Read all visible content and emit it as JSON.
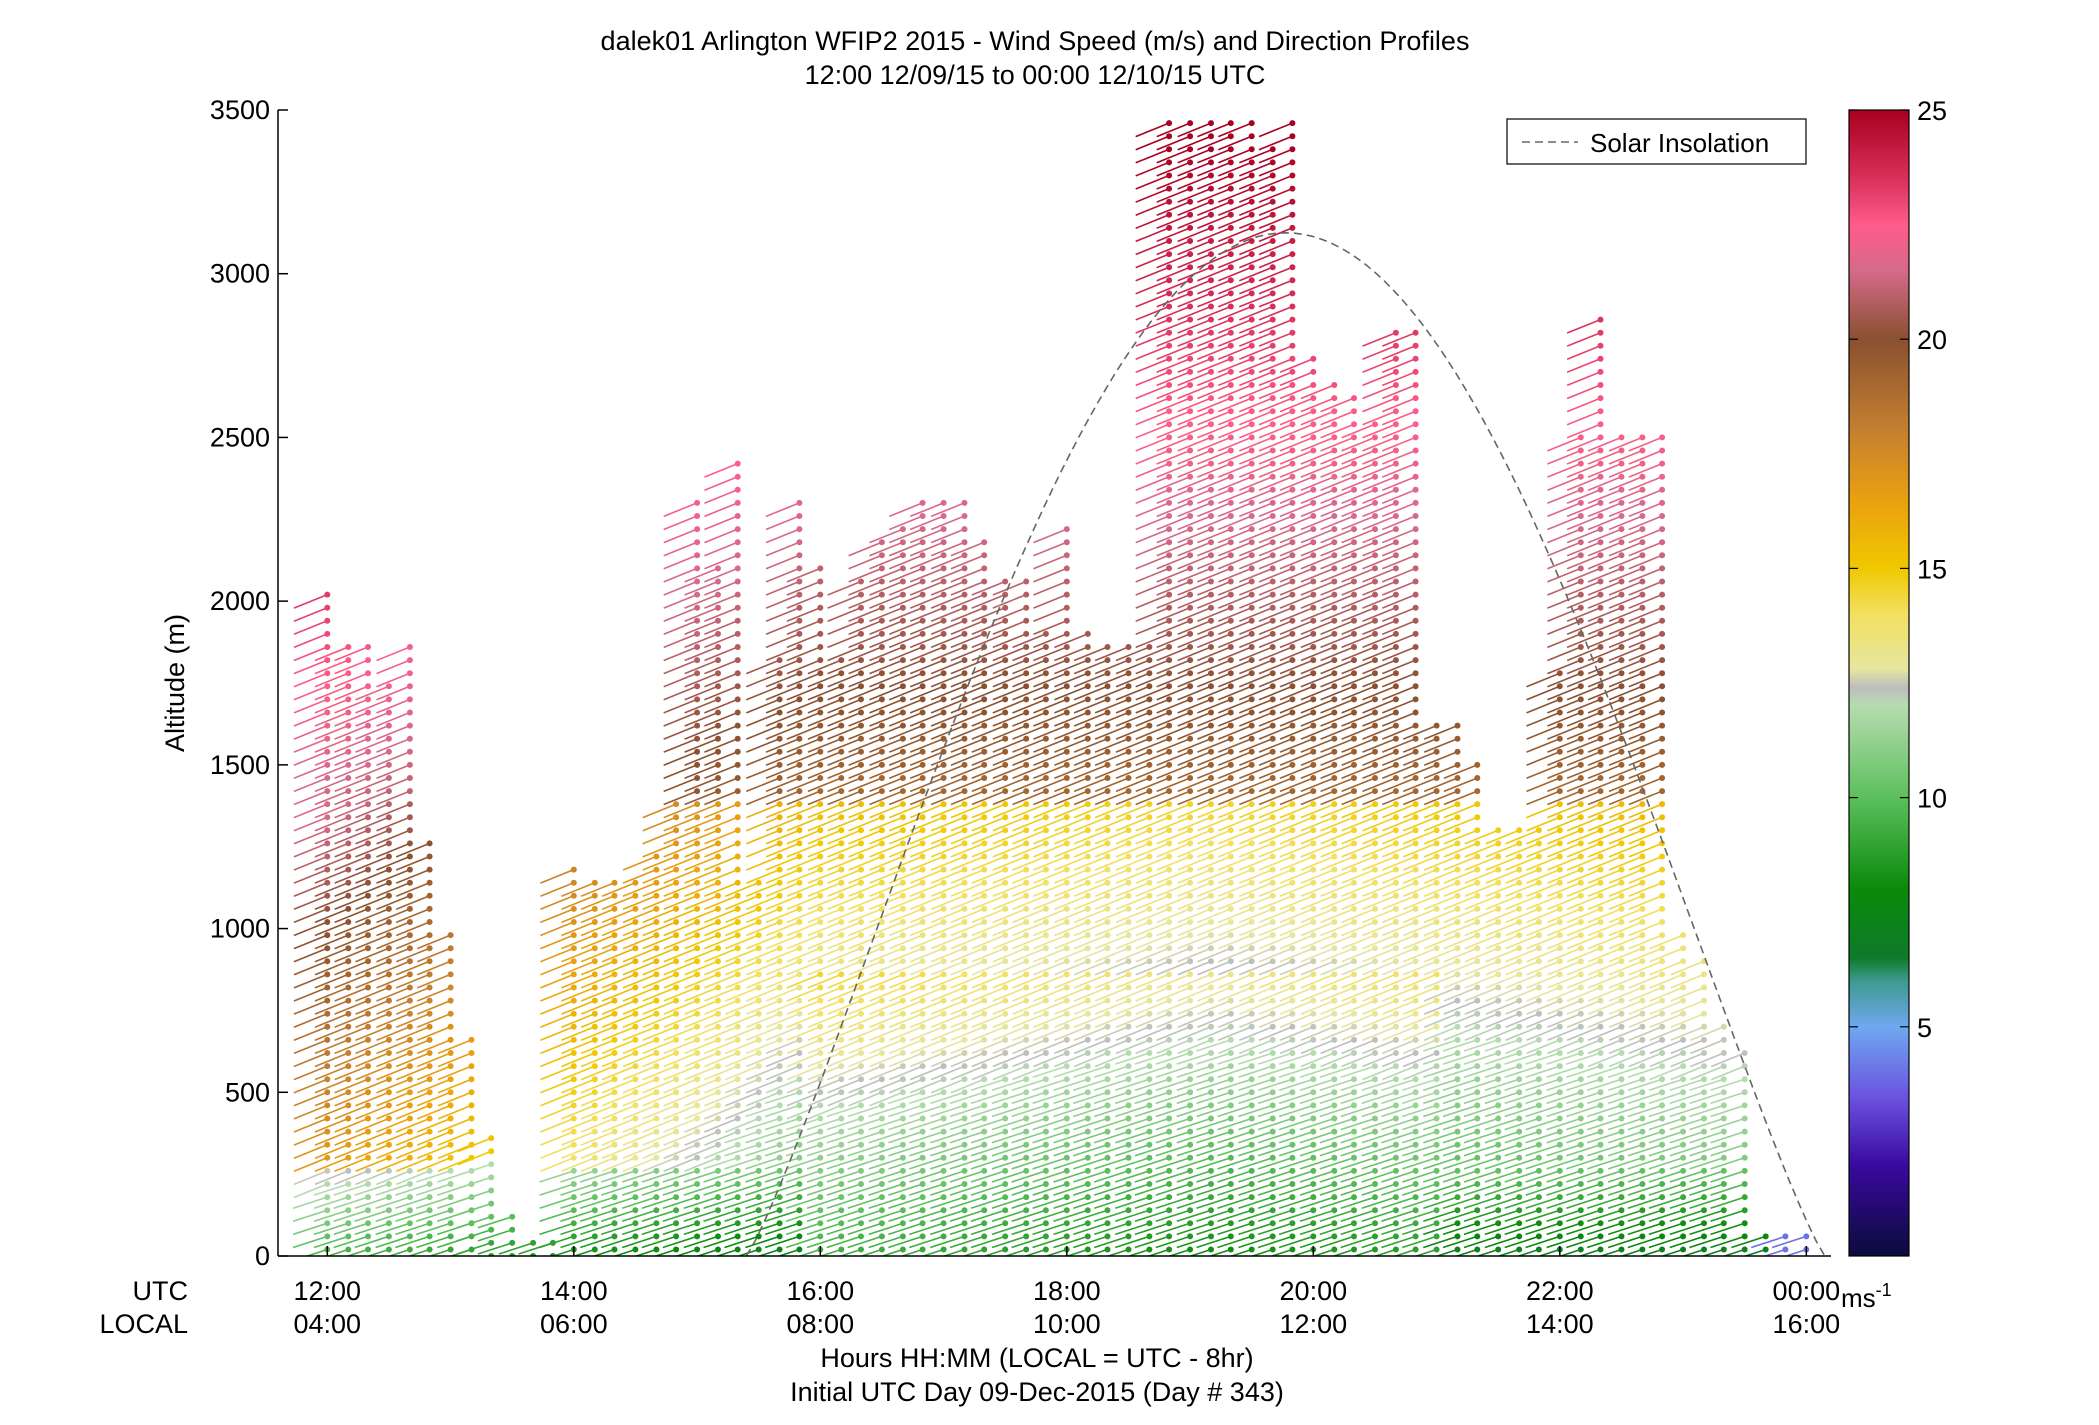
{
  "chart_data": {
    "type": "scatter",
    "title": "dalek01 Arlington WFIP2 2015 - Wind Speed (m/s) and Direction Profiles",
    "subtitle": "12:00 12/09/15 to 00:00 12/10/15  UTC",
    "ylabel": "Altitude (m)",
    "xlabel": "Hours HH:MM  (LOCAL = UTC - 8hr)",
    "xlabel2": "Initial UTC Day 09-Dec-2015 (Day # 343)",
    "ylim": [
      0,
      3500
    ],
    "y_ticks": [
      0,
      500,
      1000,
      1500,
      2000,
      2500,
      3000,
      3500
    ],
    "x_range_hours": [
      11.6,
      24.2
    ],
    "x_ticks_hours": [
      12,
      14,
      16,
      18,
      20,
      22,
      24
    ],
    "utc_label": "UTC",
    "local_label": "LOCAL",
    "x_ticks_utc": [
      "12:00",
      "14:00",
      "16:00",
      "18:00",
      "20:00",
      "22:00",
      "00:00"
    ],
    "x_ticks_local": [
      "04:00",
      "06:00",
      "08:00",
      "10:00",
      "12:00",
      "14:00",
      "16:00"
    ],
    "legend": {
      "entry": "Solar Insolation",
      "placement": "top-right",
      "style": "dashed gray line"
    },
    "colorbar": {
      "range": [
        0,
        25
      ],
      "ticks": [
        5,
        10,
        15,
        20,
        25
      ],
      "unit_label": "ms",
      "unit_exp": "-1",
      "stops": [
        {
          "v": 0,
          "c": "#0b0b3a"
        },
        {
          "v": 2,
          "c": "#3a0aa0"
        },
        {
          "v": 3.5,
          "c": "#6b55e0"
        },
        {
          "v": 5,
          "c": "#6fa8f0"
        },
        {
          "v": 6,
          "c": "#3e9a8e"
        },
        {
          "v": 6.5,
          "c": "#0f7a2a"
        },
        {
          "v": 8,
          "c": "#0a8a0a"
        },
        {
          "v": 10,
          "c": "#5cbf5c"
        },
        {
          "v": 12,
          "c": "#b6dcb0"
        },
        {
          "v": 12.4,
          "c": "#bdbdbd"
        },
        {
          "v": 12.8,
          "c": "#e6e6a0"
        },
        {
          "v": 14,
          "c": "#f2e060"
        },
        {
          "v": 15,
          "c": "#f0c800"
        },
        {
          "v": 16.5,
          "c": "#eaa010"
        },
        {
          "v": 18,
          "c": "#c48030"
        },
        {
          "v": 20,
          "c": "#8a5030"
        },
        {
          "v": 21.5,
          "c": "#d56a8a"
        },
        {
          "v": 22.5,
          "c": "#ff5c8a"
        },
        {
          "v": 23.5,
          "c": "#d8305a"
        },
        {
          "v": 25,
          "c": "#a80020"
        }
      ]
    },
    "solar_insolation": {
      "start_hour": 15.4,
      "end_hour": 24.15,
      "peak_hour": 19.8,
      "peak_altitude": 3125
    },
    "profile_times_hours": [
      12.0,
      12.17,
      12.33,
      12.5,
      12.67,
      12.83,
      13.0,
      13.17,
      13.33,
      13.5,
      13.67,
      13.83,
      14.0,
      14.17,
      14.33,
      14.5,
      14.67,
      14.83,
      15.0,
      15.17,
      15.33,
      15.5,
      15.67,
      15.83,
      16.0,
      16.17,
      16.33,
      16.5,
      16.67,
      16.83,
      17.0,
      17.17,
      17.33,
      17.5,
      17.67,
      17.83,
      18.0,
      18.17,
      18.33,
      18.5,
      18.67,
      18.83,
      19.0,
      19.17,
      19.33,
      19.5,
      19.67,
      19.83,
      20.0,
      20.17,
      20.33,
      20.5,
      20.67,
      20.83,
      21.0,
      21.17,
      21.33,
      21.5,
      21.67,
      21.83,
      22.0,
      22.17,
      22.33,
      22.5,
      22.67,
      22.83,
      23.0,
      23.17,
      23.33,
      23.5,
      23.67,
      23.83,
      24.0
    ],
    "profile_tops_m": [
      2050,
      1870,
      1870,
      1750,
      1870,
      1280,
      990,
      660,
      380,
      120,
      60,
      40,
      1200,
      1140,
      1140,
      1140,
      1220,
      1380,
      2300,
      2120,
      2450,
      1150,
      1850,
      2310,
      2100,
      1850,
      2080,
      2180,
      2250,
      2310,
      2300,
      2300,
      2180,
      2080,
      2080,
      1900,
      2220,
      1900,
      1880,
      1880,
      1880,
      3460,
      3460,
      3460,
      3460,
      3460,
      3400,
      3460,
      2750,
      2680,
      2640,
      2570,
      2830,
      2850,
      1620,
      1620,
      1500,
      1320,
      1300,
      1300,
      1800,
      2500,
      2870,
      2500,
      2500,
      2500,
      1000,
      900,
      700,
      620,
      80,
      80,
      80
    ]
  }
}
